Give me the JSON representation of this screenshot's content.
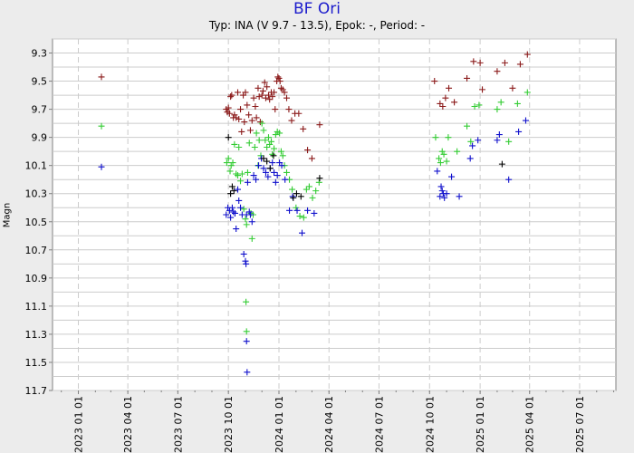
{
  "title": "BF Ori",
  "subtitle": "Typ: INA (V 9.7 - 13.5), Epok: -, Period: -",
  "chart_data": {
    "type": "scatter",
    "ylabel": "Magn",
    "xlabel": "",
    "ylim": [
      11.7,
      9.2
    ],
    "y_inverted": true,
    "xlim": [
      "2022-11-15",
      "2025-09-05"
    ],
    "grid": true,
    "legend": "none",
    "y_ticks": [
      "9.3",
      "9.5",
      "9.7",
      "9.9",
      "10.1",
      "10.3",
      "10.5",
      "10.7",
      "10.9",
      "11.1",
      "11.3",
      "11.5",
      "11.7"
    ],
    "x_ticks": [
      "2023 01 01",
      "2023 04 01",
      "2023 07 01",
      "2023 10 01",
      "2024 01 01",
      "2024 04 01",
      "2024 07 01",
      "2024 10 01",
      "2025 01 01",
      "2025 04 01",
      "2025 07 01"
    ],
    "colors": {
      "red": "#8b1a1a",
      "green": "#33cc33",
      "blue": "#1010cc",
      "black": "#000000",
      "grid": "#cccccc",
      "plot_bg": "#ffffff",
      "axis_text": "#000000"
    },
    "series": [
      {
        "color": "red",
        "points": [
          [
            "2023-02-12",
            9.47
          ],
          [
            "2023-09-27",
            9.7
          ],
          [
            "2023-09-29",
            9.72
          ],
          [
            "2023-10-01",
            9.69
          ],
          [
            "2023-10-03",
            9.73
          ],
          [
            "2023-10-05",
            9.61
          ],
          [
            "2023-10-07",
            9.6
          ],
          [
            "2023-10-10",
            9.76
          ],
          [
            "2023-10-12",
            9.74
          ],
          [
            "2023-10-15",
            9.76
          ],
          [
            "2023-10-18",
            9.58
          ],
          [
            "2023-10-20",
            9.77
          ],
          [
            "2023-10-23",
            9.7
          ],
          [
            "2023-10-25",
            9.86
          ],
          [
            "2023-10-28",
            9.6
          ],
          [
            "2023-10-30",
            9.79
          ],
          [
            "2023-11-01",
            9.58
          ],
          [
            "2023-11-04",
            9.67
          ],
          [
            "2023-11-07",
            9.74
          ],
          [
            "2023-11-10",
            9.85
          ],
          [
            "2023-11-13",
            9.78
          ],
          [
            "2023-11-16",
            9.62
          ],
          [
            "2023-11-19",
            9.68
          ],
          [
            "2023-11-21",
            9.76
          ],
          [
            "2023-11-24",
            9.55
          ],
          [
            "2023-11-26",
            9.61
          ],
          [
            "2023-11-28",
            9.79
          ],
          [
            "2023-12-01",
            9.6
          ],
          [
            "2023-12-03",
            9.57
          ],
          [
            "2023-12-06",
            9.51
          ],
          [
            "2023-12-08",
            9.62
          ],
          [
            "2023-12-10",
            9.54
          ],
          [
            "2023-12-13",
            9.6
          ],
          [
            "2023-12-15",
            9.63
          ],
          [
            "2023-12-18",
            9.58
          ],
          [
            "2023-12-20",
            9.61
          ],
          [
            "2023-12-23",
            9.58
          ],
          [
            "2023-12-25",
            9.7
          ],
          [
            "2023-12-28",
            9.5
          ],
          [
            "2023-12-30",
            9.47
          ],
          [
            "2024-01-01",
            9.48
          ],
          [
            "2024-01-03",
            9.5
          ],
          [
            "2024-01-05",
            9.55
          ],
          [
            "2024-01-08",
            9.56
          ],
          [
            "2024-01-11",
            9.58
          ],
          [
            "2024-01-15",
            9.62
          ],
          [
            "2024-01-19",
            9.7
          ],
          [
            "2024-01-24",
            9.78
          ],
          [
            "2024-01-30",
            9.73
          ],
          [
            "2024-02-06",
            9.73
          ],
          [
            "2024-02-14",
            9.84
          ],
          [
            "2024-02-22",
            9.99
          ],
          [
            "2024-03-01",
            10.05
          ],
          [
            "2024-03-15",
            9.81
          ],
          [
            "2024-10-10",
            9.5
          ],
          [
            "2024-10-20",
            9.66
          ],
          [
            "2024-10-25",
            9.68
          ],
          [
            "2024-10-30",
            9.62
          ],
          [
            "2024-11-05",
            9.55
          ],
          [
            "2024-11-15",
            9.65
          ],
          [
            "2024-12-08",
            9.48
          ],
          [
            "2024-12-20",
            9.36
          ],
          [
            "2025-01-01",
            9.37
          ],
          [
            "2025-01-05",
            9.56
          ],
          [
            "2025-02-01",
            9.43
          ],
          [
            "2025-02-15",
            9.37
          ],
          [
            "2025-03-01",
            9.55
          ],
          [
            "2025-03-15",
            9.38
          ],
          [
            "2025-03-28",
            9.31
          ]
        ]
      },
      {
        "color": "green",
        "points": [
          [
            "2023-02-12",
            9.82
          ],
          [
            "2023-09-28",
            10.08
          ],
          [
            "2023-10-01",
            10.05
          ],
          [
            "2023-10-04",
            10.14
          ],
          [
            "2023-10-06",
            10.1
          ],
          [
            "2023-10-09",
            10.08
          ],
          [
            "2023-10-12",
            9.95
          ],
          [
            "2023-10-15",
            10.16
          ],
          [
            "2023-10-18",
            10.17
          ],
          [
            "2023-10-20",
            9.97
          ],
          [
            "2023-10-23",
            10.21
          ],
          [
            "2023-10-26",
            10.16
          ],
          [
            "2023-10-29",
            10.41
          ],
          [
            "2023-11-01",
            10.48
          ],
          [
            "2023-11-03",
            10.52
          ],
          [
            "2023-11-05",
            10.15
          ],
          [
            "2023-11-08",
            9.94
          ],
          [
            "2023-11-11",
            10.44
          ],
          [
            "2023-11-13",
            10.62
          ],
          [
            "2023-11-15",
            10.45
          ],
          [
            "2023-11-18",
            9.97
          ],
          [
            "2023-11-21",
            9.87
          ],
          [
            "2023-11-24",
            10.1
          ],
          [
            "2023-11-26",
            9.92
          ],
          [
            "2023-11-29",
            10.03
          ],
          [
            "2023-12-01",
            9.8
          ],
          [
            "2023-12-04",
            9.85
          ],
          [
            "2023-12-07",
            9.92
          ],
          [
            "2023-12-10",
            9.97
          ],
          [
            "2023-12-13",
            9.9
          ],
          [
            "2023-12-15",
            9.95
          ],
          [
            "2023-12-18",
            9.93
          ],
          [
            "2023-12-20",
            10.02
          ],
          [
            "2023-12-23",
            9.98
          ],
          [
            "2023-12-26",
            9.88
          ],
          [
            "2023-12-29",
            9.86
          ],
          [
            "2024-01-02",
            9.87
          ],
          [
            "2024-01-05",
            10.0
          ],
          [
            "2024-01-08",
            10.03
          ],
          [
            "2024-01-11",
            10.1
          ],
          [
            "2024-01-15",
            10.15
          ],
          [
            "2024-01-20",
            10.2
          ],
          [
            "2024-01-25",
            10.27
          ],
          [
            "2024-02-01",
            10.4
          ],
          [
            "2024-02-08",
            10.46
          ],
          [
            "2024-02-15",
            10.47
          ],
          [
            "2024-02-20",
            10.27
          ],
          [
            "2024-02-25",
            10.25
          ],
          [
            "2024-03-02",
            10.33
          ],
          [
            "2024-03-08",
            10.28
          ],
          [
            "2024-03-14",
            10.22
          ],
          [
            "2023-11-02",
            11.07
          ],
          [
            "2023-11-03",
            11.28
          ],
          [
            "2024-10-12",
            9.9
          ],
          [
            "2024-10-18",
            10.05
          ],
          [
            "2024-10-21",
            10.08
          ],
          [
            "2024-10-24",
            10.0
          ],
          [
            "2024-10-27",
            10.02
          ],
          [
            "2024-11-01",
            10.07
          ],
          [
            "2024-11-04",
            9.9
          ],
          [
            "2024-11-20",
            10.0
          ],
          [
            "2024-12-08",
            9.82
          ],
          [
            "2024-12-15",
            9.93
          ],
          [
            "2024-12-22",
            9.68
          ],
          [
            "2024-12-30",
            9.67
          ],
          [
            "2025-02-01",
            9.7
          ],
          [
            "2025-02-08",
            9.65
          ],
          [
            "2025-02-22",
            9.93
          ],
          [
            "2025-03-10",
            9.66
          ],
          [
            "2025-03-28",
            9.58
          ]
        ]
      },
      {
        "color": "blue",
        "points": [
          [
            "2023-02-12",
            10.11
          ],
          [
            "2023-09-27",
            10.45
          ],
          [
            "2023-09-30",
            10.4
          ],
          [
            "2023-10-03",
            10.42
          ],
          [
            "2023-10-05",
            10.47
          ],
          [
            "2023-10-08",
            10.4
          ],
          [
            "2023-10-10",
            10.43
          ],
          [
            "2023-10-13",
            10.44
          ],
          [
            "2023-10-15",
            10.55
          ],
          [
            "2023-10-18",
            10.27
          ],
          [
            "2023-10-20",
            10.35
          ],
          [
            "2023-10-23",
            10.4
          ],
          [
            "2023-10-26",
            10.45
          ],
          [
            "2023-10-29",
            10.73
          ],
          [
            "2023-11-01",
            10.78
          ],
          [
            "2023-11-03",
            10.45
          ],
          [
            "2023-11-05",
            10.22
          ],
          [
            "2023-11-08",
            10.43
          ],
          [
            "2023-11-10",
            10.45
          ],
          [
            "2023-11-13",
            10.5
          ],
          [
            "2023-11-16",
            10.17
          ],
          [
            "2023-11-20",
            10.2
          ],
          [
            "2023-11-25",
            10.1
          ],
          [
            "2023-11-30",
            10.05
          ],
          [
            "2023-12-04",
            10.12
          ],
          [
            "2023-12-08",
            10.15
          ],
          [
            "2023-12-12",
            10.18
          ],
          [
            "2023-12-16",
            10.12
          ],
          [
            "2023-12-20",
            10.08
          ],
          [
            "2023-12-23",
            10.15
          ],
          [
            "2023-12-26",
            10.22
          ],
          [
            "2023-12-29",
            10.17
          ],
          [
            "2024-01-02",
            10.08
          ],
          [
            "2024-01-06",
            10.1
          ],
          [
            "2024-01-12",
            10.2
          ],
          [
            "2024-01-20",
            10.42
          ],
          [
            "2024-01-26",
            10.32
          ],
          [
            "2024-02-03",
            10.42
          ],
          [
            "2024-02-12",
            10.58
          ],
          [
            "2024-02-22",
            10.42
          ],
          [
            "2024-03-05",
            10.44
          ],
          [
            "2023-11-02",
            10.8
          ],
          [
            "2023-11-03",
            11.35
          ],
          [
            "2023-11-04",
            11.57
          ],
          [
            "2024-10-15",
            10.14
          ],
          [
            "2024-10-20",
            10.32
          ],
          [
            "2024-10-22",
            10.25
          ],
          [
            "2024-10-24",
            10.28
          ],
          [
            "2024-10-26",
            10.3
          ],
          [
            "2024-10-28",
            10.33
          ],
          [
            "2024-11-01",
            10.3
          ],
          [
            "2024-11-10",
            10.18
          ],
          [
            "2024-11-24",
            10.32
          ],
          [
            "2024-12-14",
            10.05
          ],
          [
            "2024-12-18",
            9.96
          ],
          [
            "2024-12-28",
            9.92
          ],
          [
            "2025-02-01",
            9.92
          ],
          [
            "2025-02-05",
            9.88
          ],
          [
            "2025-02-22",
            10.2
          ],
          [
            "2025-03-12",
            9.86
          ],
          [
            "2025-03-25",
            9.78
          ]
        ]
      },
      {
        "color": "black",
        "points": [
          [
            "2023-10-01",
            9.9
          ],
          [
            "2023-10-05",
            10.3
          ],
          [
            "2023-10-08",
            10.25
          ],
          [
            "2023-10-11",
            10.28
          ],
          [
            "2023-12-04",
            10.05
          ],
          [
            "2023-12-10",
            10.07
          ],
          [
            "2023-12-16",
            10.12
          ],
          [
            "2023-12-22",
            10.03
          ],
          [
            "2024-01-27",
            10.33
          ],
          [
            "2024-02-02",
            10.3
          ],
          [
            "2024-02-10",
            10.32
          ],
          [
            "2024-03-15",
            10.19
          ],
          [
            "2025-02-10",
            10.09
          ]
        ]
      }
    ]
  }
}
